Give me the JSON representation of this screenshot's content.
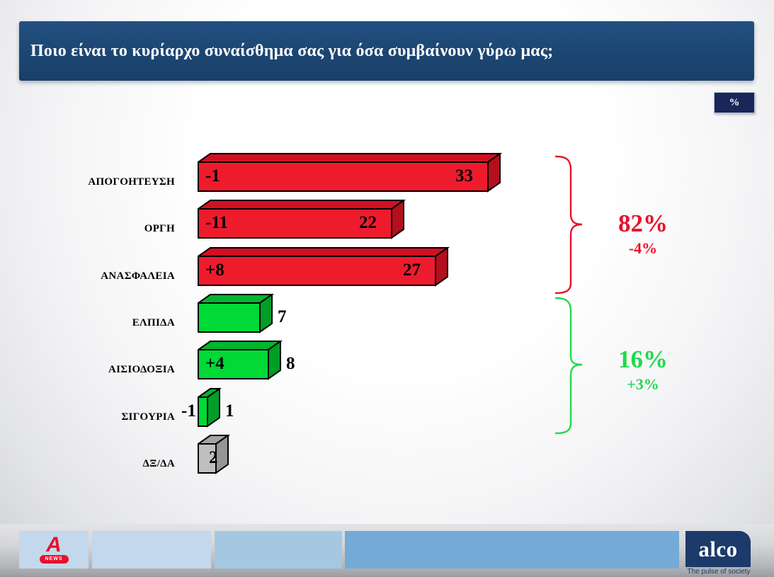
{
  "header": {
    "title": "Ποιο είναι το κυρίαρχο συναίσθημα σας για όσα συμβαίνουν γύρω μας;",
    "unit_badge": "%"
  },
  "chart_data": {
    "type": "bar",
    "orientation": "horizontal",
    "title": "Ποιο είναι το κυρίαρχο συναίσθημα σας για όσα συμβαίνουν γύρω μας;",
    "unit": "%",
    "categories": [
      "ΑΠΟΓΟΗΤΕΥΣΗ",
      "ΟΡΓΗ",
      "ΑΝΑΣΦΑΛΕΙΑ",
      "ΕΛΠΙΔΑ",
      "ΑΙΣΙΟΔΟΞΙΑ",
      "ΣΙΓΟΥΡΙΑ",
      "ΔΞ/ΔΑ"
    ],
    "values": [
      33,
      22,
      27,
      7,
      8,
      1,
      2
    ],
    "deltas": [
      "-1",
      "-11",
      "+8",
      null,
      "+4",
      "-1",
      null
    ],
    "rows": [
      {
        "label": "ΑΠΟΓΟΗΤΕΥΣΗ",
        "value": 33,
        "delta": "-1",
        "group": "negative",
        "value_pos": "inside",
        "delta_pos": "inside"
      },
      {
        "label": "ΟΡΓΗ",
        "value": 22,
        "delta": "-11",
        "group": "negative",
        "value_pos": "inside",
        "delta_pos": "inside"
      },
      {
        "label": "ΑΝΑΣΦΑΛΕΙΑ",
        "value": 27,
        "delta": "+8",
        "group": "negative",
        "value_pos": "inside",
        "delta_pos": "inside"
      },
      {
        "label": "ΕΛΠΙΔΑ",
        "value": 7,
        "delta": null,
        "group": "positive",
        "value_pos": "outside",
        "delta_pos": null
      },
      {
        "label": "ΑΙΣΙΟΔΟΞΙΑ",
        "value": 8,
        "delta": "+4",
        "group": "positive",
        "value_pos": "outside",
        "delta_pos": "inside"
      },
      {
        "label": "ΣΙΓΟΥΡΙΑ",
        "value": 1,
        "delta": "-1",
        "group": "positive",
        "value_pos": "outside",
        "delta_pos": "outside-left"
      },
      {
        "label": "ΔΞ/ΔΑ",
        "value": 2,
        "delta": null,
        "group": "unknown",
        "value_pos": "overlap-right",
        "delta_pos": null
      }
    ],
    "groups": {
      "negative": {
        "label_total": "82%",
        "label_change": "-4%",
        "members": [
          "ΑΠΟΓΟΗΤΕΥΣΗ",
          "ΟΡΓΗ",
          "ΑΝΑΣΦΑΛΕΙΑ"
        ],
        "color": "#e8112d"
      },
      "positive": {
        "label_total": "16%",
        "label_change": "+3%",
        "members": [
          "ΕΛΠΙΔΑ",
          "ΑΙΣΙΟΔΟΞΙΑ",
          "ΣΙΓΟΥΡΙΑ"
        ],
        "color": "#22d94c"
      }
    },
    "bar_colors": {
      "negative": {
        "front": "#ee1b2d",
        "top": "#d11022",
        "side": "#b50e1d"
      },
      "positive": {
        "front": "#00d936",
        "top": "#00b52d",
        "side": "#009e27"
      },
      "unknown": {
        "front": "#bfbfbf",
        "top": "#a3a3a3",
        "side": "#969696"
      }
    },
    "legend": null,
    "grid": false
  },
  "footer": {
    "alpha_logo_letter": "A",
    "alpha_news_label": "NEWS",
    "alco_label": "alco",
    "alco_tagline": "The pulse of society"
  },
  "theme_colors": {
    "title_bar_navy": "#1c4672",
    "badge_navy": "#19265a",
    "footer_strip_light": "#c3d8ec",
    "footer_strip_mid": "#a5c8e2",
    "footer_strip_dark": "#74aad6",
    "alco_navy": "#1c3a6a",
    "alpha_red": "#e8112d"
  }
}
